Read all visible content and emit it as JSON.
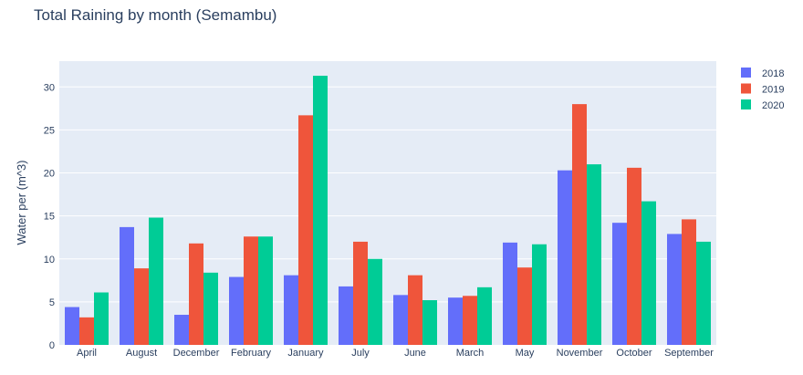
{
  "chart_data": {
    "type": "bar",
    "title": "Total Raining by month (Semambu)",
    "xlabel": "",
    "ylabel": "Water per (m^3)",
    "ylim": [
      0,
      33
    ],
    "yticks": [
      0,
      5,
      10,
      15,
      20,
      25,
      30
    ],
    "grid": true,
    "legend_position": "top-right",
    "categories": [
      "April",
      "August",
      "December",
      "February",
      "January",
      "July",
      "June",
      "March",
      "May",
      "November",
      "October",
      "September"
    ],
    "series": [
      {
        "name": "2018",
        "color": "#636efa",
        "values": [
          4.4,
          13.7,
          3.5,
          7.9,
          8.1,
          6.8,
          5.8,
          5.5,
          11.9,
          20.3,
          14.2,
          12.9
        ]
      },
      {
        "name": "2019",
        "color": "#ef553b",
        "values": [
          3.2,
          8.9,
          11.8,
          12.6,
          26.7,
          12.0,
          8.1,
          5.7,
          9.0,
          28.0,
          20.6,
          14.6
        ]
      },
      {
        "name": "2020",
        "color": "#00cc96",
        "values": [
          6.1,
          14.8,
          8.4,
          12.6,
          31.3,
          10.0,
          5.2,
          6.7,
          11.7,
          21.0,
          16.7,
          12.0
        ]
      }
    ]
  }
}
